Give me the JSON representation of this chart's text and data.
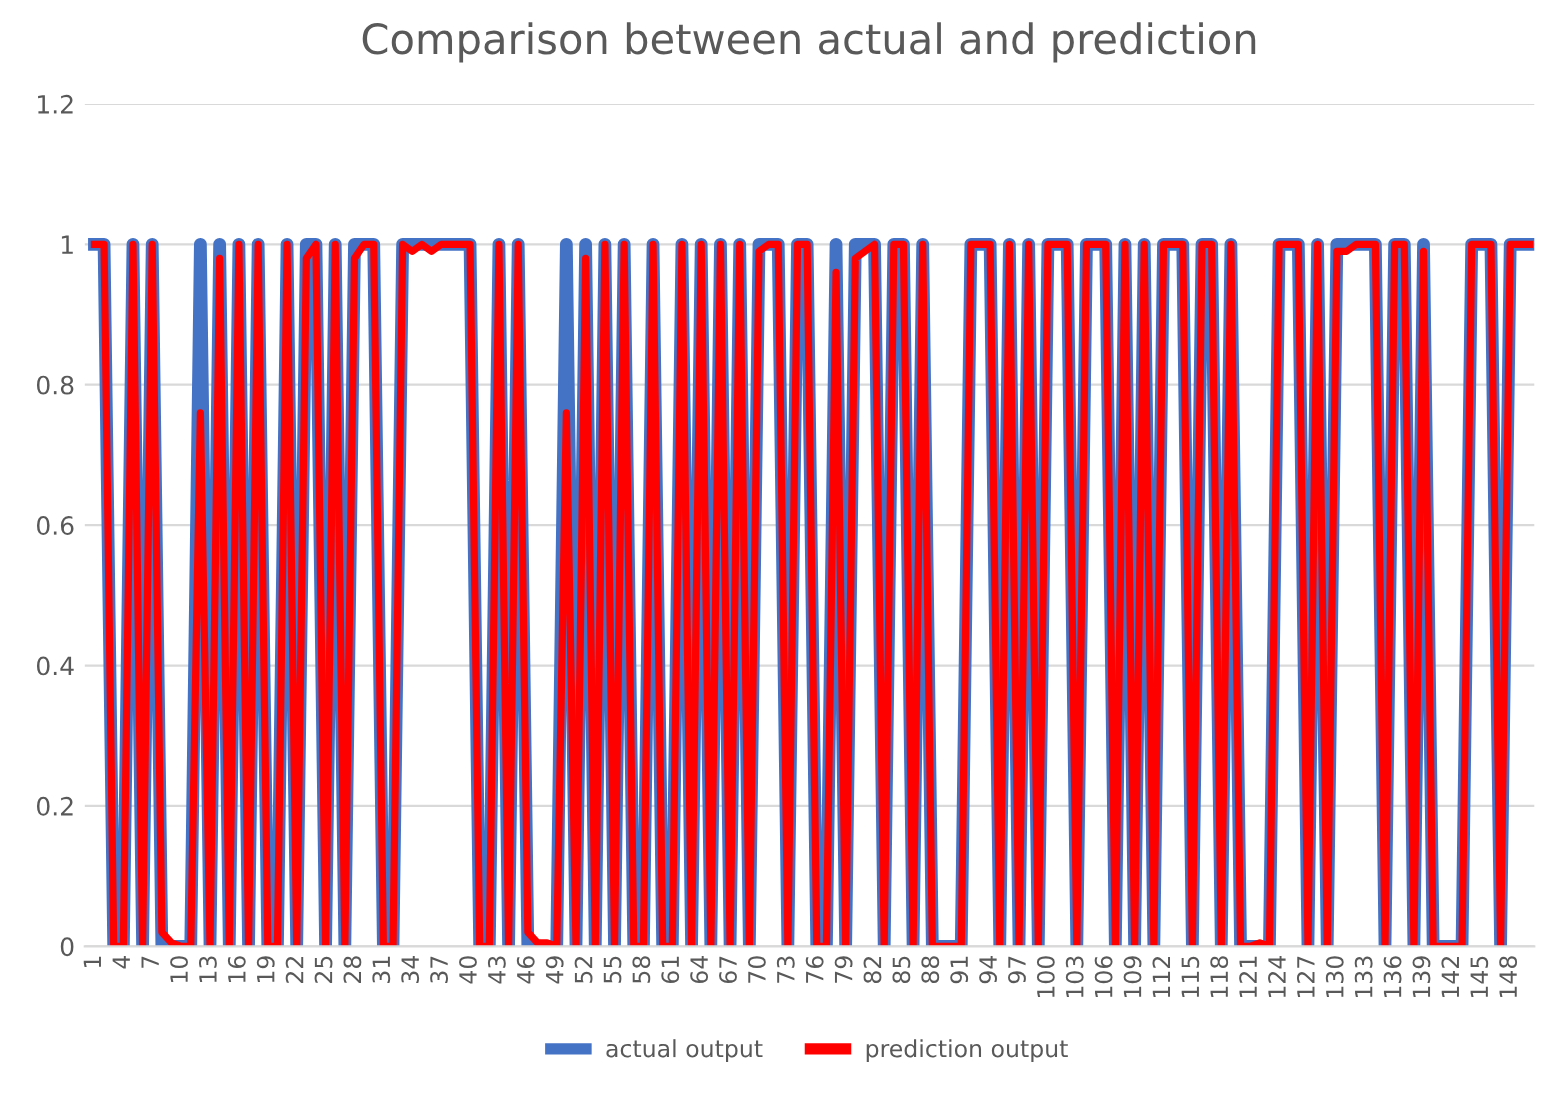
{
  "chart_data": {
    "type": "line",
    "title": "Comparison between actual and prediction",
    "categories": [
      "1",
      null,
      null,
      "4",
      null,
      null,
      "7",
      null,
      null,
      "10",
      null,
      null,
      "13",
      null,
      null,
      "16",
      null,
      null,
      "19",
      null,
      null,
      "22",
      null,
      null,
      "25",
      null,
      null,
      "28",
      null,
      null,
      "31",
      null,
      null,
      "34",
      null,
      null,
      "37",
      null,
      null,
      "40",
      null,
      null,
      "43",
      null,
      null,
      "46",
      null,
      null,
      "49",
      null,
      null,
      "52",
      null,
      null,
      "55",
      null,
      null,
      "58",
      null,
      null,
      "61",
      null,
      null,
      "64",
      null,
      null,
      "67",
      null,
      null,
      "70",
      null,
      null,
      "73",
      null,
      null,
      "76",
      null,
      null,
      "79",
      null,
      null,
      "82",
      null,
      null,
      "85",
      null,
      null,
      "88",
      null,
      null,
      "91",
      null,
      null,
      "94",
      null,
      null,
      "97",
      null,
      null,
      "100",
      null,
      null,
      "103",
      null,
      null,
      "106",
      null,
      null,
      "109",
      null,
      null,
      "112",
      null,
      null,
      "115",
      null,
      null,
      "118",
      null,
      null,
      "121",
      null,
      null,
      "124",
      null,
      null,
      "127",
      null,
      null,
      "130",
      null,
      null,
      "133",
      null,
      null,
      "136",
      null,
      null,
      "139",
      null,
      null,
      "142",
      null,
      null,
      "145",
      null,
      null,
      "148",
      null,
      null
    ],
    "series": [
      {
        "name": "actual output",
        "color": "#4472c4",
        "values": [
          1,
          1,
          0,
          0,
          1,
          0,
          1,
          0,
          0,
          0,
          0,
          1,
          0,
          1,
          0,
          1,
          0,
          1,
          0,
          0,
          1,
          0,
          1,
          1,
          0,
          1,
          0,
          1,
          1,
          1,
          0,
          0,
          1,
          1,
          1,
          1,
          1,
          1,
          1,
          1,
          0,
          0,
          1,
          0,
          1,
          0,
          0,
          0,
          0,
          1,
          0,
          1,
          0,
          1,
          0,
          1,
          0,
          0,
          1,
          0,
          0,
          1,
          0,
          1,
          0,
          1,
          0,
          1,
          0,
          1,
          1,
          1,
          0,
          1,
          1,
          0,
          0,
          1,
          0,
          1,
          1,
          1,
          0,
          1,
          1,
          0,
          1,
          0,
          0,
          0,
          0,
          1,
          1,
          1,
          0,
          1,
          0,
          1,
          0,
          1,
          1,
          1,
          0,
          1,
          1,
          1,
          0,
          1,
          0,
          1,
          0,
          1,
          1,
          1,
          0,
          1,
          1,
          0,
          1,
          0,
          0,
          0,
          0,
          1,
          1,
          1,
          0,
          1,
          0,
          1,
          1,
          1,
          1,
          1,
          0,
          1,
          1,
          0,
          1,
          0,
          0,
          0,
          0,
          1,
          1,
          1,
          0,
          1,
          1,
          1
        ]
      },
      {
        "name": "prediction output",
        "color": "#ff0000",
        "values": [
          1,
          1,
          0,
          0,
          1,
          0,
          1,
          0.02,
          0.005,
          0,
          0,
          0.76,
          0,
          0.98,
          0,
          1,
          0,
          1,
          0,
          0,
          1,
          0,
          0.98,
          1,
          0,
          1,
          0,
          0.98,
          1,
          1,
          0,
          0,
          1,
          0.99,
          1,
          0.99,
          1,
          1,
          1,
          1,
          0,
          0,
          1,
          0,
          1,
          0.02,
          0.005,
          0.005,
          0,
          0.76,
          0,
          0.98,
          0,
          1,
          0,
          1,
          0,
          0,
          1,
          0,
          0,
          1,
          0,
          1,
          0,
          1,
          0,
          1,
          0,
          0.99,
          1,
          1,
          0,
          1,
          1,
          0,
          0,
          0.96,
          0,
          0.98,
          0.99,
          1,
          0,
          1,
          1,
          0,
          1,
          0,
          0,
          0,
          0,
          1,
          1,
          1,
          0,
          1,
          0,
          1,
          0,
          1,
          1,
          1,
          0,
          1,
          1,
          1,
          0,
          1,
          0,
          1,
          0,
          1,
          1,
          1,
          0,
          1,
          1,
          0,
          1,
          0,
          0,
          0.005,
          0,
          1,
          1,
          1,
          0,
          1,
          0,
          0.99,
          0.99,
          1,
          1,
          1,
          0,
          1,
          1,
          0,
          0.99,
          0,
          0,
          0,
          0,
          1,
          1,
          1,
          0,
          1,
          1,
          1
        ]
      }
    ],
    "ylim": [
      0,
      1.2
    ],
    "yticks": [
      0,
      0.2,
      0.4,
      0.6,
      0.8,
      1,
      1.2
    ],
    "grid": "y",
    "legend": "bottom",
    "marker": "none",
    "line_style": "solid"
  }
}
